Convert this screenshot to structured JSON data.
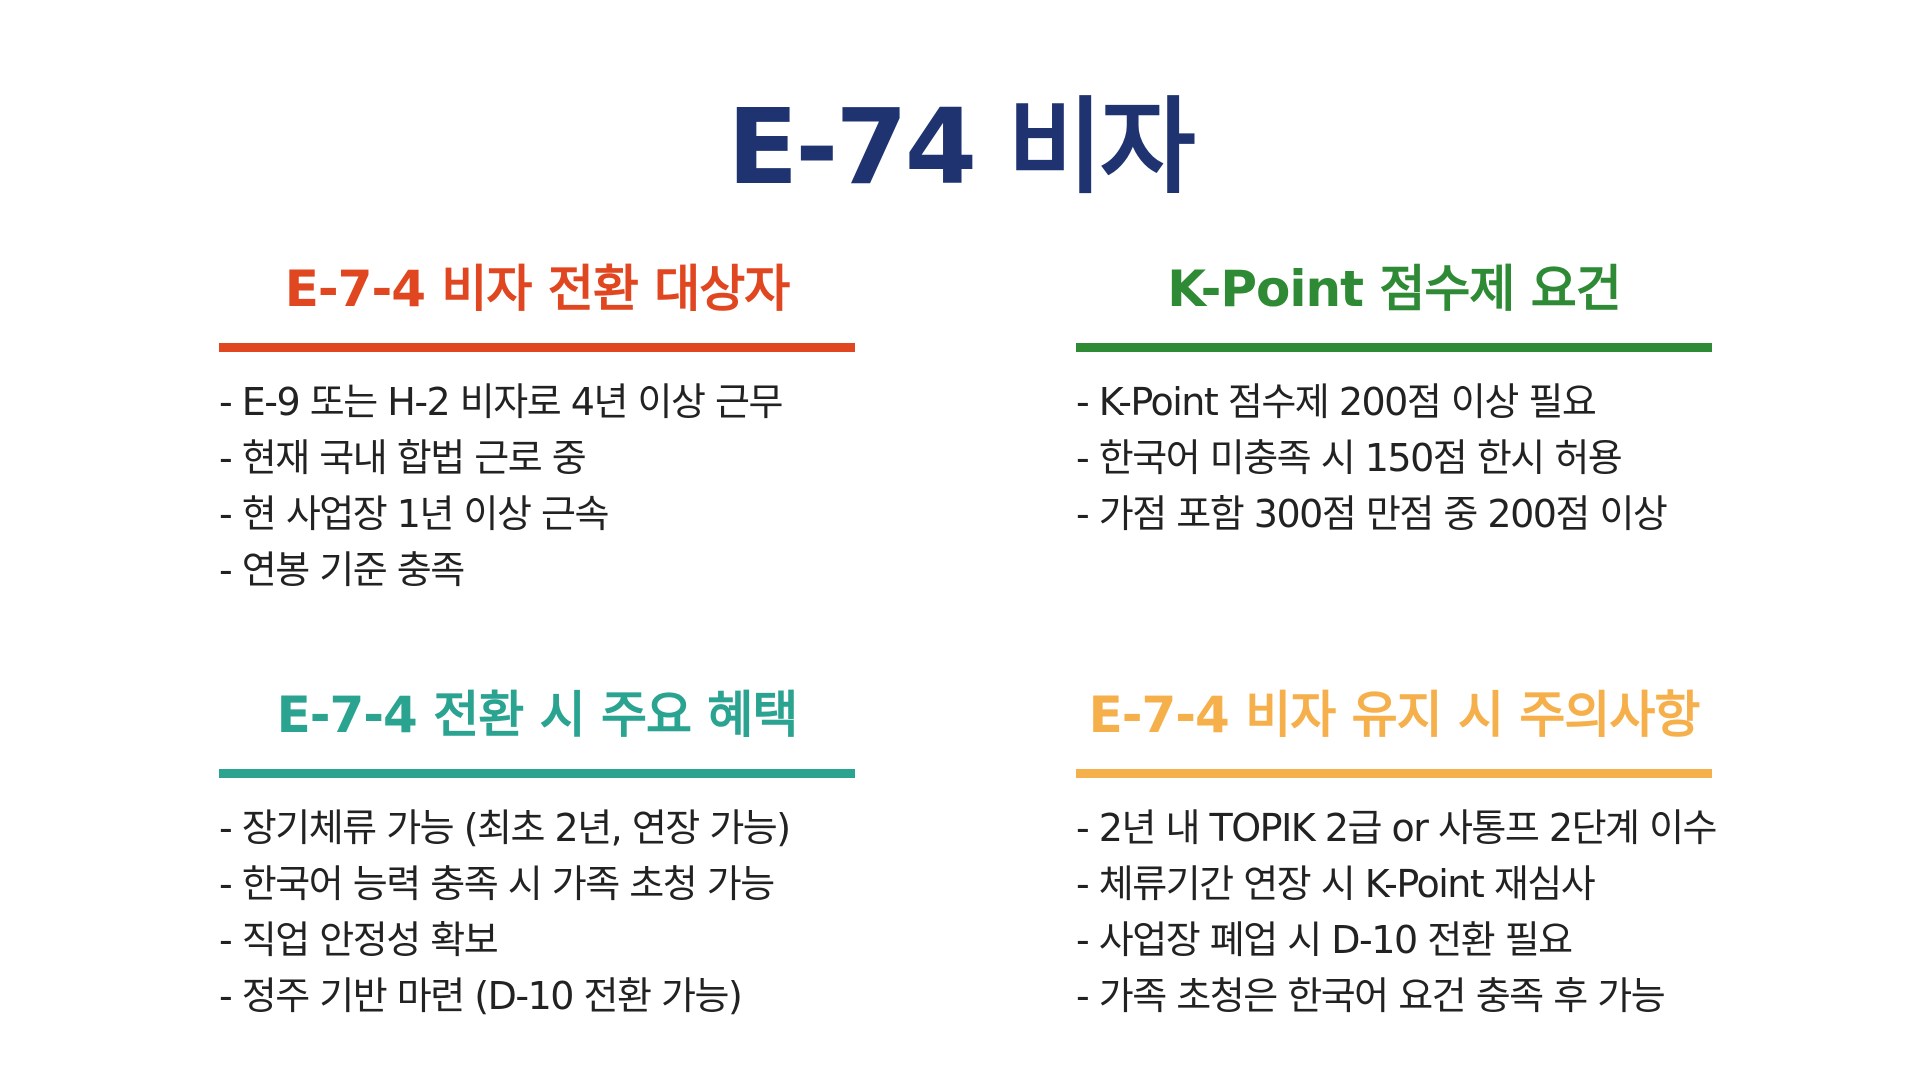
{
  "title": "E-74 비자",
  "sections": [
    {
      "heading": "E-7-4 비자 전환 대상자",
      "color": "#e0461f",
      "items": [
        "- E-9 또는 H-2 비자로 4년 이상 근무",
        "- 현재 국내 합법 근로 중",
        "- 현 사업장 1년 이상 근속",
        "- 연봉 기준 충족"
      ]
    },
    {
      "heading": "K-Point 점수제 요건",
      "color": "#2f8a35",
      "items": [
        "- K-Point 점수제 200점 이상 필요",
        "- 한국어 미충족 시 150점 한시 허용",
        "- 가점 포함 300점 만점 중 200점 이상"
      ]
    },
    {
      "heading": "E-7-4 전환 시 주요 혜택",
      "color": "#2aa391",
      "items": [
        "- 장기체류 가능 (최초 2년, 연장 가능)",
        "- 한국어 능력 충족 시 가족 초청 가능",
        "- 직업 안정성 확보",
        "- 정주 기반 마련 (D-10 전환 가능)"
      ]
    },
    {
      "heading": "E-7-4 비자 유지 시 주의사항",
      "color": "#f5b04c",
      "items": [
        "- 2년 내 TOPIK 2급 or 사통프 2단계 이수",
        "- 체류기간 연장 시 K-Point 재심사",
        "- 사업장 폐업 시 D-10 전환 필요",
        "- 가족 초청은 한국어 요건 충족 후 가능"
      ]
    }
  ],
  "title_color": "#1f3370"
}
